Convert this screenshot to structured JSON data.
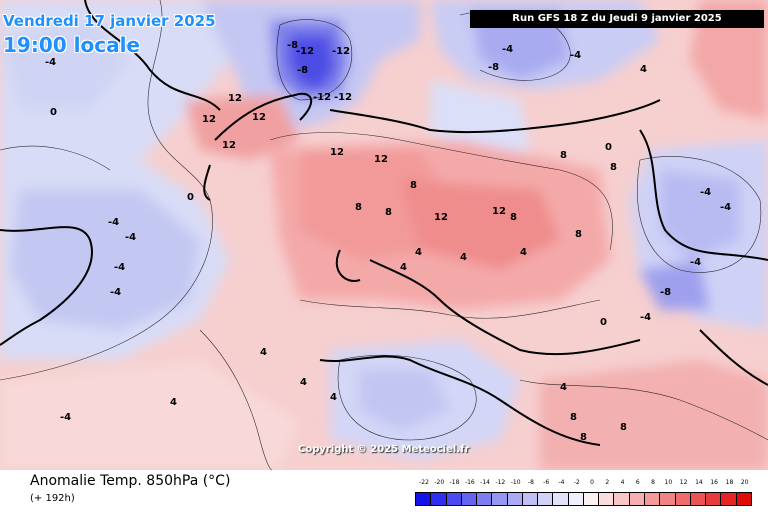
{
  "header": {
    "date_line1": "Vendredi 17 janvier 2025",
    "date_line2": "19:00 locale",
    "run_info": "Run GFS 18 Z du Jeudi 9 janvier 2025"
  },
  "copyright": "Copyright © 2025 Meteociel.fr",
  "footer": {
    "title": "Anomalie Temp. 850hPa (°C)",
    "subtitle": "(+ 192h)"
  },
  "legend": {
    "labels": [
      "-22",
      "-20",
      "-18",
      "-16",
      "-14",
      "-12",
      "-10",
      "-8",
      "-6",
      "-4",
      "-2",
      "0",
      "2",
      "4",
      "6",
      "8",
      "10",
      "12",
      "14",
      "16",
      "18",
      "20"
    ],
    "colors": [
      "#1414e8",
      "#2f2ff0",
      "#4a4af0",
      "#6464f0",
      "#7d7df0",
      "#9595f2",
      "#abaaf4",
      "#c0c0f6",
      "#d2d2f8",
      "#e2e2fb",
      "#f0f0fd",
      "#fdf0f0",
      "#fbdcdc",
      "#f8c6c6",
      "#f6b0b0",
      "#f39a9a",
      "#f08484",
      "#ee6c6c",
      "#ec5454",
      "#e83c3c",
      "#e52424",
      "#e00c0c"
    ]
  },
  "map": {
    "contour_labels": [
      {
        "text": "-12"
      },
      {
        "text": "-12"
      },
      {
        "text": "-12"
      },
      {
        "text": "-12"
      },
      {
        "text": "-8"
      },
      {
        "text": "-8"
      },
      {
        "text": "-4"
      },
      {
        "text": "-4"
      },
      {
        "text": "-4"
      },
      {
        "text": "-4"
      },
      {
        "text": "-4"
      },
      {
        "text": "-4"
      },
      {
        "text": "-4"
      },
      {
        "text": "-4"
      },
      {
        "text": "-4"
      },
      {
        "text": "-4"
      },
      {
        "text": "-8"
      },
      {
        "text": "-4"
      },
      {
        "text": "-8"
      },
      {
        "text": "-4"
      },
      {
        "text": "0"
      },
      {
        "text": "0"
      },
      {
        "text": "0"
      },
      {
        "text": "0"
      },
      {
        "text": "4"
      },
      {
        "text": "4"
      },
      {
        "text": "4"
      },
      {
        "text": "4"
      },
      {
        "text": "4"
      },
      {
        "text": "4"
      },
      {
        "text": "4"
      },
      {
        "text": "4"
      },
      {
        "text": "4"
      },
      {
        "text": "4"
      },
      {
        "text": "8"
      },
      {
        "text": "8"
      },
      {
        "text": "8"
      },
      {
        "text": "8"
      },
      {
        "text": "8"
      },
      {
        "text": "8"
      },
      {
        "text": "8"
      },
      {
        "text": "8"
      },
      {
        "text": "8"
      },
      {
        "text": "8"
      },
      {
        "text": "12"
      },
      {
        "text": "12"
      },
      {
        "text": "12"
      },
      {
        "text": "12"
      },
      {
        "text": "12"
      },
      {
        "text": "12"
      },
      {
        "text": "12"
      },
      {
        "text": "12"
      }
    ]
  }
}
